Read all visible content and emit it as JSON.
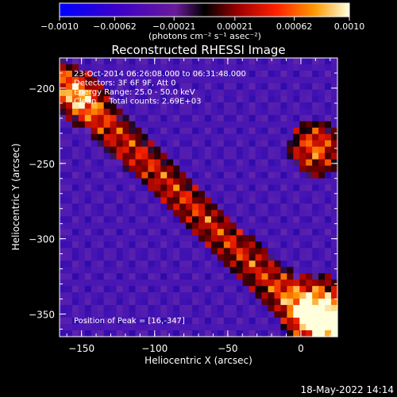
{
  "chart_data": {
    "type": "heatmap",
    "title": "Reconstructed RHESSI Image",
    "xlabel": "Heliocentric X (arcsec)",
    "ylabel": "Heliocentric Y (arcsec)",
    "xlim": [
      -165,
      25
    ],
    "ylim": [
      -365,
      -180
    ],
    "x_ticks": [
      -150,
      -100,
      -50,
      0
    ],
    "x_tick_labels": [
      "−150",
      "−100",
      "−50",
      "0"
    ],
    "y_ticks": [
      -200,
      -250,
      -300,
      -350
    ],
    "y_tick_labels": [
      "−200",
      "−250",
      "−300",
      "−350"
    ],
    "colorbar": {
      "range": [
        -0.001,
        0.001
      ],
      "ticks": [
        -0.001,
        -0.00062,
        -0.00021,
        0.00021,
        0.00062,
        0.001
      ],
      "tick_labels": [
        "−0.0010",
        "−0.00062",
        "−0.00021",
        "0.00021",
        "0.00062",
        "0.0010"
      ],
      "units_text": "(photons cm⁻² s⁻¹ asec⁻²)"
    },
    "annotations": [
      "23-Oct-2014 06:26:08.000 to 06:31:48.000",
      "Detectors: 3F 6F 9F, Att 0",
      "Energy Range: 25.0 - 50.0 keV",
      "Clean     Total counts: 2.69E+03"
    ],
    "peak_label": "Position of Peak = [16,-347]",
    "peak": {
      "x": 16,
      "y": -347
    },
    "emission_regions": [
      {
        "name": "diagonal ridge",
        "from": [
          -165,
          -200
        ],
        "to": [
          25,
          -360
        ]
      },
      {
        "name": "upper-right source",
        "center": [
          10,
          -240
        ]
      },
      {
        "name": "lower-right source",
        "center": [
          16,
          -347
        ]
      }
    ],
    "grid": false
  },
  "footer": {
    "date": "18-May-2022 14:14"
  }
}
